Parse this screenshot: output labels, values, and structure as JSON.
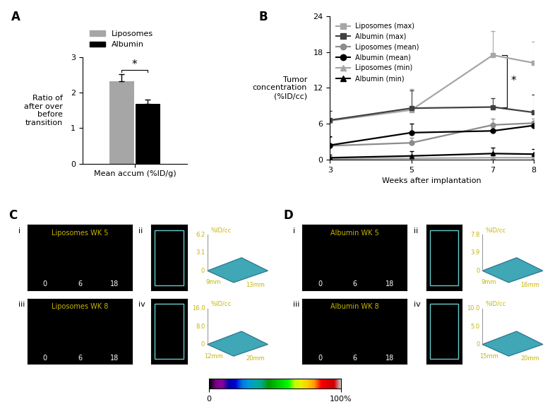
{
  "chart_data": [
    {
      "type": "bar",
      "panel_label": "A",
      "categories": [
        "Mean accum (%ID/g)"
      ],
      "ylabel": "Ratio of\nafter over\nbefore\ntransition",
      "ylim": [
        0,
        3
      ],
      "yticks": [
        0,
        1,
        2,
        3
      ],
      "legend": "upper left",
      "series": [
        {
          "name": "Liposomes",
          "color": "#a6a6a6",
          "values": [
            2.32
          ],
          "errors": [
            0.2
          ]
        },
        {
          "name": "Albumin",
          "color": "#000000",
          "values": [
            1.68
          ],
          "errors": [
            0.12
          ]
        }
      ],
      "annotations": [
        {
          "text": "*",
          "between": [
            "Liposomes",
            "Albumin"
          ]
        }
      ]
    },
    {
      "type": "line",
      "panel_label": "B",
      "x": [
        3,
        5,
        7,
        8
      ],
      "xlim": [
        3,
        8
      ],
      "xticks": [
        3,
        5,
        7,
        8
      ],
      "xlabel": "Weeks after implantation",
      "ylabel": "Tumor\nconcentration\n(%ID/cc)",
      "ylim": [
        0,
        24
      ],
      "yticks": [
        0,
        6,
        12,
        18,
        24
      ],
      "legend": "upper left",
      "series": [
        {
          "name": "Liposomes (max)",
          "color": "#a6a6a6",
          "marker": "square",
          "line_style": "solid",
          "values": [
            6.5,
            8.3,
            17.5,
            16.2
          ],
          "errors": [
            1.6,
            3.5,
            4.0,
            3.6
          ]
        },
        {
          "name": "Albumin (max)",
          "color": "#404040",
          "marker": "square",
          "line_style": "solid",
          "values": [
            6.6,
            8.6,
            8.8,
            7.9
          ],
          "errors": [
            1.6,
            3.0,
            1.5,
            3.0
          ]
        },
        {
          "name": "Liposomes (mean)",
          "color": "#8c8c8c",
          "marker": "circle",
          "line_style": "solid",
          "values": [
            2.3,
            2.8,
            5.8,
            6.1
          ],
          "errors": [
            1.5,
            0.8,
            1.0,
            0.7
          ]
        },
        {
          "name": "Albumin (mean)",
          "color": "#000000",
          "marker": "circle",
          "line_style": "solid",
          "values": [
            2.4,
            4.5,
            4.8,
            5.7
          ],
          "errors": [
            1.5,
            1.5,
            1.0,
            0.5
          ]
        },
        {
          "name": "Liposomes (min)",
          "color": "#a6a6a6",
          "marker": "triangle",
          "line_style": "solid",
          "values": [
            0.1,
            0.2,
            0.3,
            0.3
          ],
          "errors": [
            0.5,
            0.5,
            0.5,
            0.5
          ]
        },
        {
          "name": "Albumin (min)",
          "color": "#000000",
          "marker": "triangle",
          "line_style": "solid",
          "values": [
            0.3,
            0.6,
            1.0,
            0.9
          ],
          "errors": [
            0.5,
            0.8,
            1.0,
            0.8
          ]
        }
      ],
      "annotations": [
        {
          "text": "*",
          "between": [
            "Liposomes (max)",
            "Albumin (max)"
          ]
        }
      ]
    }
  ],
  "image_panels": [
    {
      "panel_label": "C",
      "rows": [
        {
          "image": {
            "label": "i",
            "title": "Liposomes WK 5",
            "times": [
              "0",
              "6",
              "18"
            ]
          },
          "surface": {
            "label": "ii",
            "z_unit": "%ID/cc",
            "z_ticks": [
              "6.2",
              "3.1",
              "0"
            ],
            "dims": [
              "9mm",
              "13mm"
            ]
          }
        },
        {
          "image": {
            "label": "iii",
            "title": "Liposomes WK 8",
            "times": [
              "0",
              "6",
              "18"
            ]
          },
          "surface": {
            "label": "iv",
            "z_unit": "%ID/cc",
            "z_ticks": [
              "16.0",
              "8.0",
              "0"
            ],
            "dims": [
              "12mm",
              "20mm"
            ]
          }
        }
      ]
    },
    {
      "panel_label": "D",
      "rows": [
        {
          "image": {
            "label": "i",
            "title": "Albumin WK 5",
            "times": [
              "0",
              "6",
              "18"
            ]
          },
          "surface": {
            "label": "ii",
            "z_unit": "%ID/cc",
            "z_ticks": [
              "7.8",
              "3.9",
              "0"
            ],
            "dims": [
              "9mm",
              "16mm"
            ]
          }
        },
        {
          "image": {
            "label": "iii",
            "title": "Albumin WK 8",
            "times": [
              "0",
              "6",
              "18"
            ]
          },
          "surface": {
            "label": "iv",
            "z_unit": "%ID/cc",
            "z_ticks": [
              "10.0",
              "5.0",
              "0"
            ],
            "dims": [
              "15mm",
              "20mm"
            ]
          }
        }
      ]
    }
  ],
  "colorbar": {
    "range": [
      0,
      100
    ],
    "ticks": [
      0,
      {
        "value": 100,
        "label": "100%"
      }
    ]
  }
}
